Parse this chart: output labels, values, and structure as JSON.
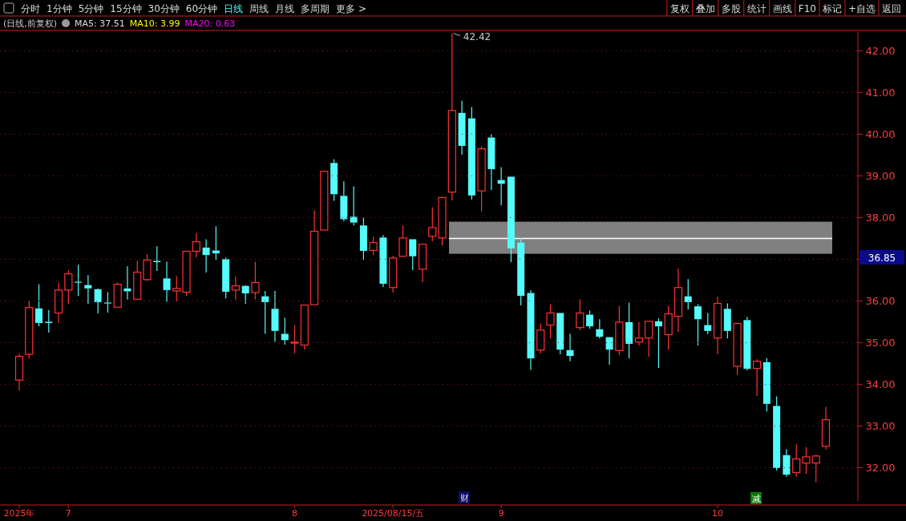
{
  "chart_data": {
    "type": "candlestick",
    "title": "(日线,前复权)",
    "categories": [
      "2025年",
      null,
      null,
      null,
      null,
      "7",
      null,
      null,
      null,
      null,
      null,
      null,
      null,
      null,
      null,
      null,
      null,
      null,
      null,
      null,
      null,
      null,
      null,
      null,
      null,
      null,
      null,
      null,
      "8",
      null,
      null,
      null,
      null,
      null,
      null,
      null,
      null,
      null,
      "2025/08/15/五",
      null,
      null,
      null,
      null,
      null,
      null,
      null,
      null,
      null,
      null,
      "9",
      null,
      null,
      null,
      null,
      null,
      null,
      null,
      null,
      null,
      null,
      null,
      null,
      null,
      null,
      null,
      null,
      null,
      null,
      null,
      null,
      null,
      "10",
      null,
      null,
      null,
      null,
      null,
      null,
      null,
      null,
      null,
      null,
      null
    ],
    "ohlc": [
      [
        34.1,
        34.73,
        33.85,
        34.67
      ],
      [
        34.72,
        36.0,
        34.62,
        35.84
      ],
      [
        35.82,
        36.4,
        35.39,
        35.47
      ],
      [
        35.5,
        35.78,
        35.24,
        35.47
      ],
      [
        35.71,
        36.44,
        35.47,
        36.26
      ],
      [
        36.26,
        36.74,
        35.93,
        36.65
      ],
      [
        36.46,
        36.87,
        36.12,
        36.45
      ],
      [
        36.38,
        36.62,
        35.93,
        36.3
      ],
      [
        36.28,
        36.3,
        35.7,
        35.97
      ],
      [
        35.96,
        36.21,
        35.72,
        35.94
      ],
      [
        35.85,
        36.44,
        35.85,
        36.4
      ],
      [
        36.3,
        36.83,
        36.03,
        36.23
      ],
      [
        36.04,
        36.96,
        36.03,
        36.69
      ],
      [
        36.51,
        37.12,
        36.48,
        36.98
      ],
      [
        36.96,
        37.31,
        36.72,
        36.93
      ],
      [
        36.54,
        36.94,
        35.98,
        36.26
      ],
      [
        36.24,
        36.6,
        35.99,
        36.3
      ],
      [
        36.21,
        37.19,
        36.12,
        37.19
      ],
      [
        37.19,
        37.63,
        37.04,
        37.42
      ],
      [
        37.28,
        37.48,
        36.68,
        37.1
      ],
      [
        37.21,
        37.79,
        36.99,
        37.14
      ],
      [
        37.0,
        37.04,
        36.06,
        36.22
      ],
      [
        36.26,
        36.59,
        36.03,
        36.36
      ],
      [
        36.36,
        36.38,
        35.93,
        36.18
      ],
      [
        36.2,
        36.94,
        36.04,
        36.44
      ],
      [
        36.11,
        36.24,
        35.21,
        35.97
      ],
      [
        35.81,
        36.24,
        35.02,
        35.28
      ],
      [
        35.21,
        35.6,
        34.95,
        35.06
      ],
      [
        34.99,
        35.42,
        34.74,
        35.01
      ],
      [
        34.94,
        35.9,
        34.83,
        35.9
      ],
      [
        35.91,
        38.17,
        35.91,
        37.67
      ],
      [
        37.7,
        39.13,
        37.7,
        39.11
      ],
      [
        39.31,
        39.4,
        38.4,
        38.56
      ],
      [
        38.52,
        38.87,
        37.91,
        37.96
      ],
      [
        38.02,
        38.75,
        37.81,
        37.88
      ],
      [
        37.81,
        38.0,
        36.99,
        37.2
      ],
      [
        37.21,
        37.54,
        37.1,
        37.4
      ],
      [
        37.52,
        37.58,
        36.33,
        36.41
      ],
      [
        36.32,
        37.08,
        36.2,
        37.03
      ],
      [
        37.07,
        37.81,
        37.07,
        37.51
      ],
      [
        37.48,
        37.48,
        36.74,
        37.07
      ],
      [
        36.76,
        37.36,
        36.45,
        37.36
      ],
      [
        37.55,
        38.25,
        37.43,
        37.76
      ],
      [
        37.51,
        38.5,
        37.33,
        38.48
      ],
      [
        38.61,
        42.42,
        38.41,
        40.57
      ],
      [
        40.51,
        40.8,
        39.51,
        39.72
      ],
      [
        40.38,
        40.65,
        38.43,
        38.53
      ],
      [
        38.64,
        39.71,
        38.14,
        39.65
      ],
      [
        39.92,
        40.0,
        38.66,
        39.16
      ],
      [
        38.9,
        39.21,
        38.29,
        38.81
      ],
      [
        38.98,
        38.98,
        36.93,
        37.26
      ],
      [
        37.4,
        37.51,
        35.89,
        36.12
      ],
      [
        36.19,
        36.26,
        34.35,
        34.62
      ],
      [
        34.82,
        35.46,
        34.74,
        35.3
      ],
      [
        35.42,
        35.92,
        35.1,
        35.71
      ],
      [
        35.71,
        35.71,
        34.72,
        34.83
      ],
      [
        34.82,
        35.21,
        34.55,
        34.68
      ],
      [
        35.36,
        36.04,
        35.29,
        35.71
      ],
      [
        35.67,
        35.77,
        35.33,
        35.39
      ],
      [
        35.32,
        35.56,
        35.1,
        35.14
      ],
      [
        35.13,
        35.13,
        34.47,
        34.83
      ],
      [
        34.81,
        35.88,
        34.7,
        35.49
      ],
      [
        35.49,
        35.96,
        34.62,
        34.97
      ],
      [
        35.01,
        35.5,
        34.93,
        35.11
      ],
      [
        35.11,
        35.51,
        34.66,
        35.51
      ],
      [
        35.51,
        35.58,
        34.39,
        35.39
      ],
      [
        35.19,
        35.88,
        34.83,
        35.69
      ],
      [
        35.63,
        36.77,
        35.26,
        36.32
      ],
      [
        36.11,
        36.52,
        35.79,
        35.97
      ],
      [
        35.87,
        35.92,
        34.93,
        35.56
      ],
      [
        35.42,
        35.71,
        35.2,
        35.28
      ],
      [
        35.11,
        36.1,
        34.72,
        35.94
      ],
      [
        35.81,
        35.94,
        35.1,
        35.28
      ],
      [
        34.43,
        35.46,
        34.22,
        35.46
      ],
      [
        35.54,
        35.62,
        34.33,
        34.37
      ],
      [
        34.38,
        34.6,
        33.72,
        34.55
      ],
      [
        34.53,
        34.63,
        33.35,
        33.53
      ],
      [
        33.48,
        33.71,
        31.93,
        31.99
      ],
      [
        32.3,
        32.44,
        31.78,
        31.83
      ],
      [
        31.88,
        32.56,
        31.78,
        32.21
      ],
      [
        32.11,
        32.49,
        31.85,
        32.26
      ],
      [
        32.11,
        32.31,
        31.65,
        32.28
      ],
      [
        32.51,
        33.46,
        32.43,
        33.15
      ]
    ],
    "ylim": [
      31.2,
      42.45
    ],
    "yticks": [
      {
        "value": 32,
        "label": "32.00"
      },
      {
        "value": 33,
        "label": "33.00"
      },
      {
        "value": 34,
        "label": "34.00"
      },
      {
        "value": 35,
        "label": "35.00"
      },
      {
        "value": 36,
        "label": "36.00"
      },
      {
        "value": 37,
        "label": null
      },
      {
        "value": 38,
        "label": "38.00"
      },
      {
        "value": 39,
        "label": "39.00"
      },
      {
        "value": 40,
        "label": "40.00"
      },
      {
        "value": 41,
        "label": "41.00"
      },
      {
        "value": 42,
        "label": "42.00"
      }
    ],
    "grid": "y",
    "bands": [
      {
        "axis": "y",
        "from": 37.13,
        "to": 37.9,
        "color": "#808080"
      }
    ],
    "ref_lines": [
      {
        "axis": "y",
        "value": 37.5,
        "color": "#ffffff"
      }
    ],
    "annotations": [
      "分时",
      "1分钟",
      "5分钟",
      "15分钟",
      "30分钟",
      "60分钟",
      "日线",
      "周线",
      "月线",
      "多周期",
      "更多 >",
      "复权",
      "叠加",
      "多股",
      "统计",
      "画线",
      "F10",
      "标记",
      "+自选",
      "返回",
      "MA5: 37.51",
      "MA10: 3.99",
      "MA20: 0.63",
      "36.85",
      "财",
      "减",
      "42.42"
    ]
  }
}
